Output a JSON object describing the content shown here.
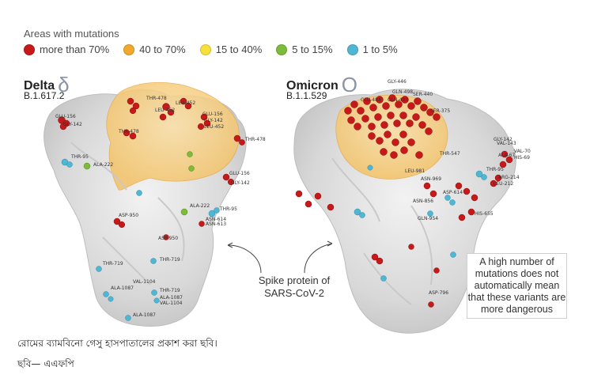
{
  "legend": {
    "title": "Areas with mutations",
    "items": [
      {
        "label": "more than 70%",
        "color": "#c61a1a"
      },
      {
        "label": "40 to 70%",
        "color": "#f0a92a"
      },
      {
        "label": "15 to 40%",
        "color": "#f7e03c"
      },
      {
        "label": "5 to 15%",
        "color": "#7dbb3a"
      },
      {
        "label": "1 to 5%",
        "color": "#4fb7d4"
      }
    ]
  },
  "delta": {
    "name": "Delta",
    "symbol": "δ",
    "code": "B.1.617.2",
    "residues": [
      "GLU-156",
      "GLY-142",
      "THR-478",
      "LEU-452",
      "LEU-452",
      "GLU-156",
      "GLY-142",
      "LEU-452",
      "THR-478",
      "THR-478",
      "THR-95",
      "ALA-222",
      "GLU-156",
      "GLY-142",
      "ASP-950",
      "ALA-222",
      "THR-95",
      "ASN-614",
      "ASN-613",
      "ASP-950",
      "THR-719",
      "THR-719",
      "VAL-1104",
      "ALA-1087",
      "THR-719",
      "ALA-1087",
      "VAL-1104",
      "ALA-1087"
    ]
  },
  "omicron": {
    "name": "Omicron",
    "symbol": "O",
    "code": "B.1.1.529",
    "residues": [
      "GLY-446",
      "GLN-498",
      "SER-440",
      "GLU-484",
      "GLN-493",
      "SER-375",
      "THR-547",
      "GLY-142",
      "VAL-143",
      "VAL-70",
      "ALA-67",
      "HIS-69",
      "THR-95",
      "ARG-214",
      "LEU-212",
      "ASN-969",
      "LEU-981",
      "ASP-614",
      "ASN-856",
      "HIS-655",
      "GLN-954",
      "ASP-796"
    ]
  },
  "labels": {
    "spike": "Spike protein of SARS-CoV-2",
    "note": "A high number of mutations does not automatically mean that these variants are more dangerous"
  },
  "caption": "রোমের ব্যামবিনো গেসু হাসপাতালের প্রকাশ করা ছবি।",
  "credit": "ছবি— এএফপি"
}
